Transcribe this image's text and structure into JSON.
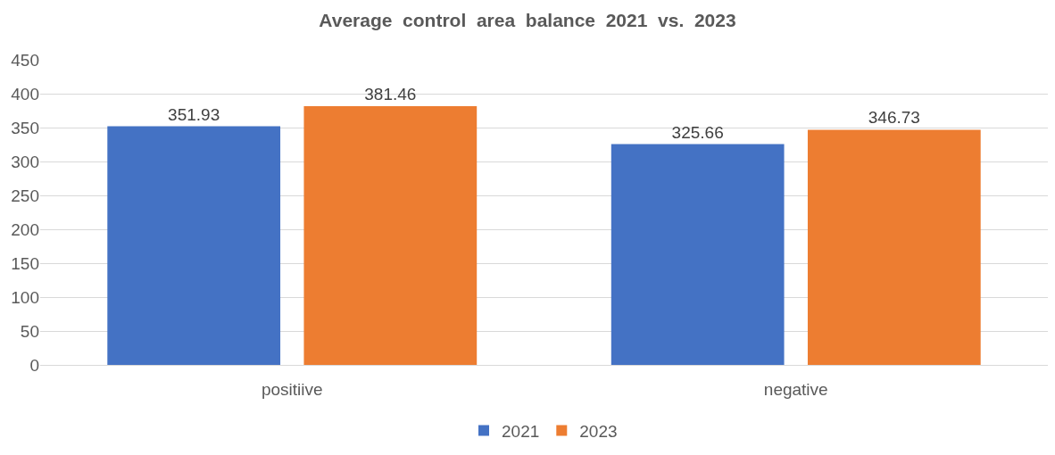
{
  "chart_data": {
    "type": "bar",
    "title": "Average  control  area  balance  2021  vs.  2023",
    "categories": [
      "positiive",
      "negative"
    ],
    "series": [
      {
        "name": "2021",
        "color": "#4472c4",
        "values": [
          351.93,
          325.66
        ]
      },
      {
        "name": "2023",
        "color": "#ed7d31",
        "values": [
          381.46,
          346.73
        ]
      }
    ],
    "ylim": [
      0,
      450
    ],
    "yticks": [
      0,
      50,
      100,
      150,
      200,
      250,
      300,
      350,
      400,
      450
    ],
    "grid": "y",
    "legend": "bottom",
    "data_labels": true
  }
}
